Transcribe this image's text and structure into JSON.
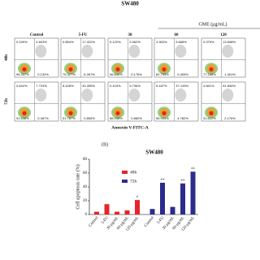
{
  "panel_a": {
    "title": "SW480",
    "group_label": "GME (μg/mL)",
    "columns": [
      "Control",
      "5-FU",
      "30",
      "60",
      "120"
    ],
    "rows": [
      "48h",
      "72h"
    ],
    "x_label": "Annexin V-FITC-A",
    "quadrants": [
      [
        [
          "0.199%",
          "4.603%",
          "95.337%",
          "0.132%"
        ],
        [
          "0.854%",
          "17.422%",
          "75.327%",
          "6.397%"
        ],
        [
          "0.122%",
          "3.062%",
          "96.640%",
          "0.176%"
        ],
        [
          "3.353%",
          "9.668%",
          "82.795%",
          "0.405%"
        ],
        [
          "0.375%",
          "19.658%",
          "77.166%",
          "1.401%"
        ]
      ],
      [
        [
          "0.642%",
          "7.724%",
          "91.638%",
          "0.487%"
        ],
        [
          "8.428%",
          "40.355%",
          "51.767%",
          "0.855%"
        ],
        [
          "0.104%",
          "9.736%",
          "88.938%",
          "0.860%"
        ],
        [
          "5.187%",
          "37.133%",
          "56.934%",
          "4.782%"
        ],
        [
          "4.661%",
          "61.654%",
          "31.622%",
          "2.176%"
        ]
      ]
    ]
  },
  "chart_data": {
    "type": "bar",
    "panel_label": "(B)",
    "title": "SW480",
    "y_label": "Cell apoptosis rate (%)",
    "categories": [
      "Control",
      "5-FU",
      "30 μg/mL",
      "60 μg/mL",
      "120 μg/mL"
    ],
    "series": [
      {
        "name": "48h",
        "color": "#e8232a",
        "values": [
          4,
          15,
          4,
          6,
          21
        ]
      },
      {
        "name": "72h",
        "color": "#2b2c8c",
        "values": [
          8,
          46,
          11,
          45,
          62
        ]
      }
    ],
    "annotations": [
      "*",
      "**",
      "**",
      "**"
    ],
    "ylim": [
      0,
      80
    ],
    "yticks": [
      0,
      20,
      40,
      60,
      80
    ]
  }
}
